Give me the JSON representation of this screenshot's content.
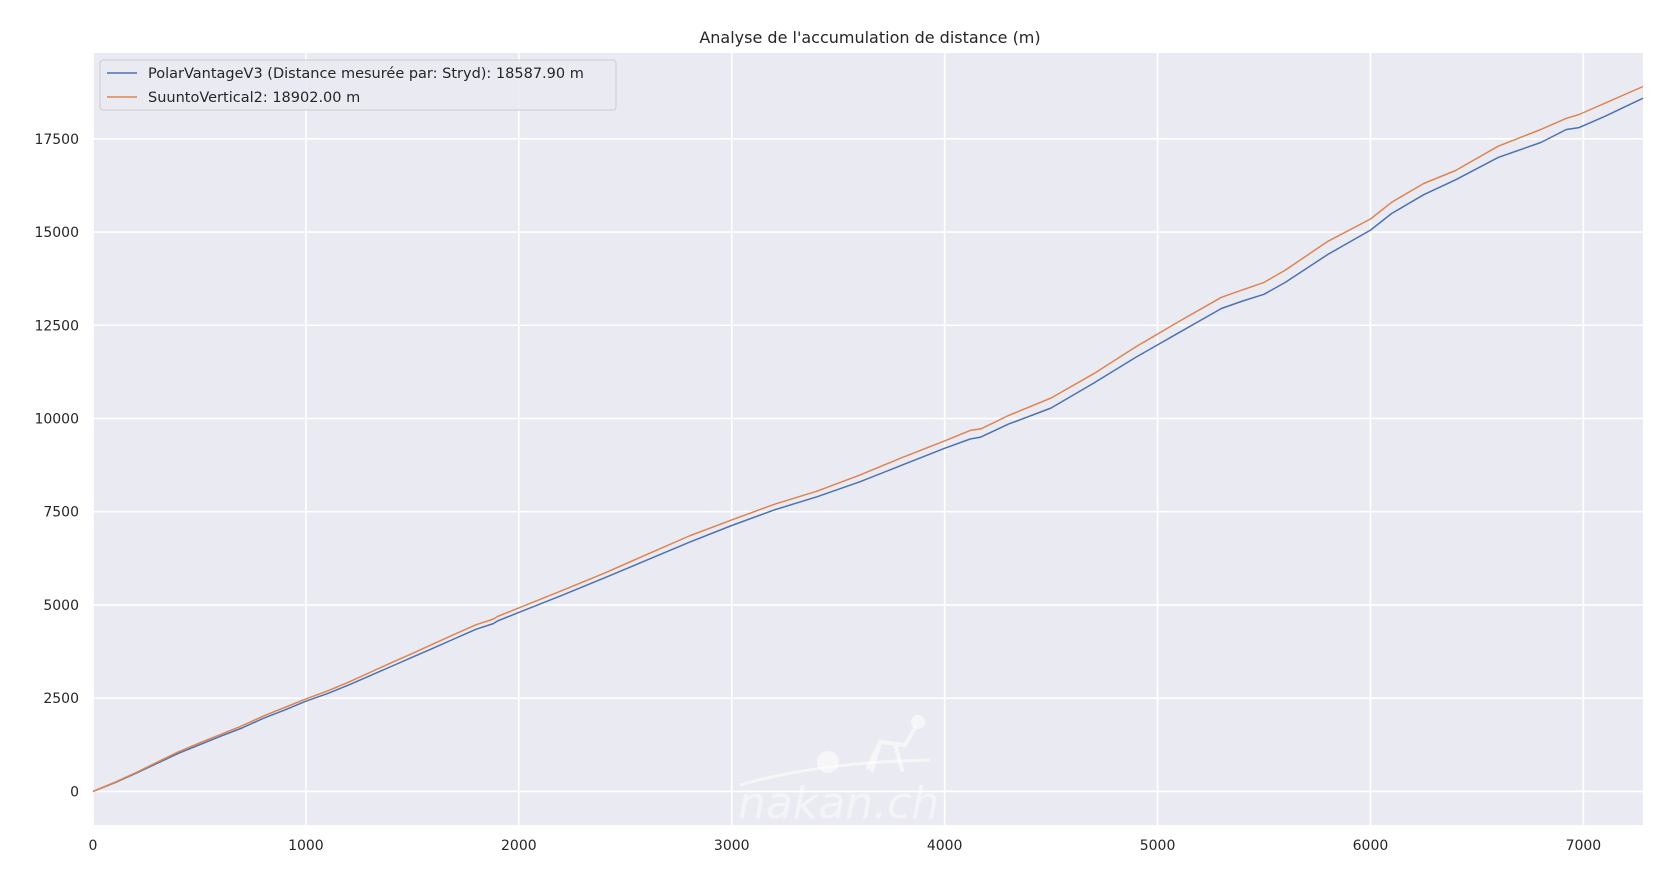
{
  "chart_data": {
    "type": "line",
    "title": "Analyse de l'accumulation de distance (m)",
    "xlabel": "",
    "ylabel": "",
    "xlim": [
      0,
      7280
    ],
    "ylim": [
      -900,
      19800
    ],
    "x_ticks": [
      0,
      1000,
      2000,
      3000,
      4000,
      5000,
      6000,
      7000
    ],
    "y_ticks": [
      0,
      2500,
      5000,
      7500,
      10000,
      12500,
      15000,
      17500
    ],
    "grid": true,
    "legend_position": "top-left",
    "background": "#eaeaf2",
    "series": [
      {
        "name": "PolarVantageV3 (Distance mesurée par: Stryd): 18587.90 m",
        "color": "#4c72b0",
        "x": [
          0,
          100,
          200,
          300,
          400,
          500,
          600,
          700,
          800,
          900,
          1000,
          1100,
          1200,
          1300,
          1400,
          1500,
          1600,
          1700,
          1800,
          1880,
          1900,
          2000,
          2200,
          2400,
          2600,
          2800,
          3000,
          3200,
          3400,
          3600,
          3800,
          4000,
          4120,
          4170,
          4300,
          4500,
          4700,
          4900,
          5100,
          5300,
          5400,
          5500,
          5600,
          5800,
          6000,
          6100,
          6250,
          6400,
          6600,
          6800,
          6920,
          6980,
          7100,
          7280
        ],
        "values": [
          0,
          230,
          480,
          750,
          1020,
          1250,
          1480,
          1700,
          1960,
          2180,
          2420,
          2620,
          2850,
          3100,
          3350,
          3600,
          3850,
          4100,
          4350,
          4500,
          4570,
          4800,
          5250,
          5720,
          6200,
          6680,
          7130,
          7550,
          7900,
          8300,
          8750,
          9200,
          9450,
          9500,
          9850,
          10280,
          10950,
          11650,
          12300,
          12950,
          13150,
          13330,
          13650,
          14400,
          15050,
          15500,
          16000,
          16400,
          17000,
          17400,
          17750,
          17800,
          18100,
          18587.9
        ]
      },
      {
        "name": "SuuntoVertical2: 18902.00 m",
        "color": "#dd8452",
        "x": [
          0,
          100,
          200,
          300,
          400,
          500,
          600,
          700,
          800,
          900,
          1000,
          1100,
          1200,
          1300,
          1400,
          1500,
          1600,
          1700,
          1800,
          1880,
          1900,
          2000,
          2200,
          2400,
          2600,
          2800,
          3000,
          3200,
          3400,
          3600,
          3800,
          4000,
          4120,
          4170,
          4300,
          4500,
          4700,
          4900,
          5100,
          5300,
          5400,
          5500,
          5600,
          5800,
          6000,
          6100,
          6250,
          6400,
          6600,
          6800,
          6920,
          6980,
          7100,
          7280
        ],
        "values": [
          0,
          240,
          500,
          780,
          1060,
          1300,
          1530,
          1760,
          2020,
          2250,
          2480,
          2690,
          2930,
          3190,
          3450,
          3700,
          3960,
          4220,
          4470,
          4620,
          4690,
          4920,
          5380,
          5850,
          6350,
          6850,
          7280,
          7700,
          8050,
          8480,
          8950,
          9400,
          9680,
          9720,
          10080,
          10550,
          11200,
          11930,
          12600,
          13250,
          13450,
          13650,
          13980,
          14750,
          15350,
          15800,
          16300,
          16650,
          17300,
          17750,
          18050,
          18150,
          18450,
          18902
        ]
      }
    ]
  },
  "watermark": {
    "text": "nakan.ch"
  }
}
